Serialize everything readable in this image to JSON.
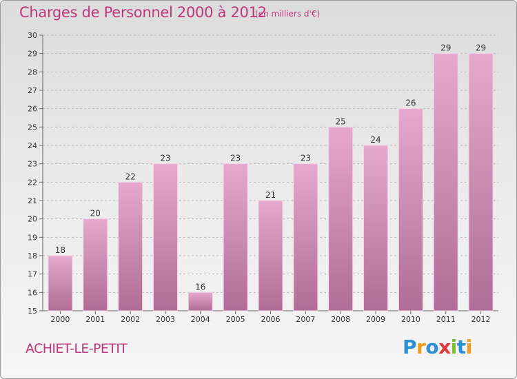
{
  "header": {
    "title": "Charges de Personnel 2000 à 2012",
    "subtitle": "(en milliers d'€)"
  },
  "footer": {
    "place": "ACHIET-LE-PETIT",
    "logo": {
      "text": "Proxiti",
      "letters": [
        {
          "ch": "P",
          "color": "#2d8fd5"
        },
        {
          "ch": "r",
          "color": "#f39a1b"
        },
        {
          "ch": "o",
          "color": "#2d8fd5"
        },
        {
          "ch": "x",
          "color": "#e0383a"
        },
        {
          "ch": "i",
          "color": "#7cbf2a"
        },
        {
          "ch": "t",
          "color": "#2d8fd5"
        },
        {
          "ch": "i",
          "color": "#f39a1b"
        }
      ]
    }
  },
  "chart_data": {
    "type": "bar",
    "title": "Charges de Personnel 2000 à 2012",
    "subtitle": "(en milliers d'€)",
    "categories": [
      "2000",
      "2001",
      "2002",
      "2003",
      "2004",
      "2005",
      "2006",
      "2007",
      "2008",
      "2009",
      "2010",
      "2011",
      "2012"
    ],
    "values": [
      18,
      20,
      22,
      23,
      16,
      23,
      21,
      23,
      25,
      24,
      26,
      29,
      29
    ],
    "ylim": [
      15,
      30
    ],
    "yticks": [
      15,
      16,
      17,
      18,
      19,
      20,
      21,
      22,
      23,
      24,
      25,
      26,
      27,
      28,
      29,
      30
    ],
    "grid": true,
    "colors": {
      "bar_top": "#e6a8cc",
      "bar_bottom": "#b06d97",
      "bar_edge": "#f3d2e4",
      "grid": "#b8b8b8",
      "text": "#333333",
      "accent": "#c0387a"
    }
  }
}
